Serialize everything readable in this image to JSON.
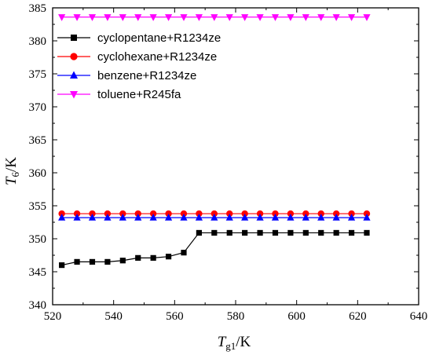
{
  "chart_data": {
    "type": "line",
    "xlabel": {
      "main": "T",
      "sub": "g1",
      "unit": "/K"
    },
    "ylabel": {
      "main": "T",
      "sub": "6",
      "unit": "/K"
    },
    "xlim": [
      520,
      640
    ],
    "ylim": [
      340,
      385
    ],
    "xticks": [
      520,
      540,
      560,
      580,
      600,
      620,
      640
    ],
    "yticks": [
      340,
      345,
      350,
      355,
      360,
      365,
      370,
      375,
      380,
      385
    ],
    "grid": false,
    "legend_position": "top-left",
    "x": [
      523,
      528,
      533,
      538,
      543,
      548,
      553,
      558,
      563,
      568,
      573,
      578,
      583,
      588,
      593,
      598,
      603,
      608,
      613,
      618,
      623
    ],
    "series": [
      {
        "name": "cyclopentane+R1234ze",
        "color": "#000000",
        "marker": "square",
        "values": [
          346.0,
          346.5,
          346.5,
          346.5,
          346.7,
          347.1,
          347.1,
          347.3,
          347.9,
          350.9,
          350.9,
          350.9,
          350.9,
          350.9,
          350.9,
          350.9,
          350.9,
          350.9,
          350.9,
          350.9,
          350.9
        ]
      },
      {
        "name": "cyclohexane+R1234ze",
        "color": "#ff0000",
        "marker": "circle",
        "values": [
          353.8,
          353.8,
          353.8,
          353.8,
          353.8,
          353.8,
          353.8,
          353.8,
          353.8,
          353.8,
          353.8,
          353.8,
          353.8,
          353.8,
          353.8,
          353.8,
          353.8,
          353.8,
          353.8,
          353.8,
          353.8
        ]
      },
      {
        "name": "benzene+R1234ze",
        "color": "#0000ff",
        "marker": "triangle-up",
        "values": [
          353.2,
          353.2,
          353.2,
          353.2,
          353.2,
          353.2,
          353.2,
          353.2,
          353.2,
          353.2,
          353.2,
          353.2,
          353.2,
          353.2,
          353.2,
          353.2,
          353.2,
          353.2,
          353.2,
          353.2,
          353.2
        ]
      },
      {
        "name": "toluene+R245fa",
        "color": "#ff00ff",
        "marker": "triangle-down",
        "values": [
          383.6,
          383.6,
          383.6,
          383.6,
          383.6,
          383.6,
          383.6,
          383.6,
          383.6,
          383.6,
          383.6,
          383.6,
          383.6,
          383.6,
          383.6,
          383.6,
          383.6,
          383.6,
          383.6,
          383.6,
          383.6
        ]
      }
    ]
  }
}
